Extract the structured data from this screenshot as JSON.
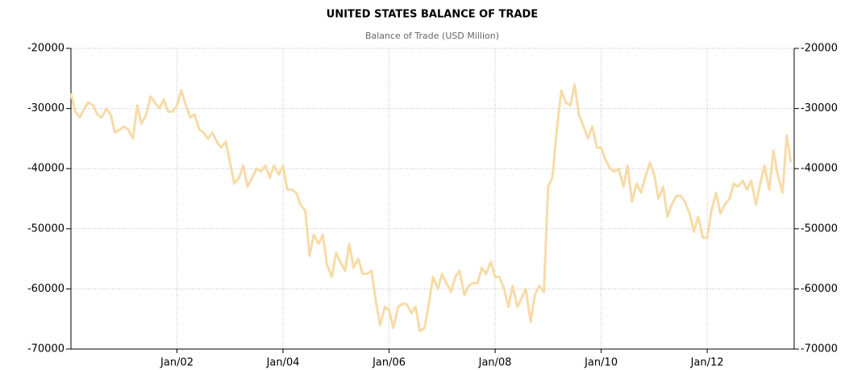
{
  "chart_data": {
    "type": "line",
    "title": "UNITED STATES BALANCE OF TRADE",
    "subtitle": "Balance of Trade (USD Million)",
    "x": [
      2000,
      2000.08,
      2000.17,
      2000.25,
      2000.33,
      2000.42,
      2000.5,
      2000.58,
      2000.67,
      2000.75,
      2000.83,
      2000.92,
      2001,
      2001.08,
      2001.17,
      2001.25,
      2001.33,
      2001.42,
      2001.5,
      2001.58,
      2001.67,
      2001.75,
      2001.83,
      2001.92,
      2002,
      2002.08,
      2002.17,
      2002.25,
      2002.33,
      2002.42,
      2002.5,
      2002.58,
      2002.67,
      2002.75,
      2002.83,
      2002.92,
      2003,
      2003.08,
      2003.17,
      2003.25,
      2003.33,
      2003.42,
      2003.5,
      2003.58,
      2003.67,
      2003.75,
      2003.83,
      2003.92,
      2004,
      2004.08,
      2004.17,
      2004.25,
      2004.33,
      2004.42,
      2004.5,
      2004.58,
      2004.67,
      2004.75,
      2004.83,
      2004.92,
      2005,
      2005.08,
      2005.17,
      2005.25,
      2005.33,
      2005.42,
      2005.5,
      2005.58,
      2005.67,
      2005.75,
      2005.83,
      2005.92,
      2006,
      2006.08,
      2006.17,
      2006.25,
      2006.33,
      2006.42,
      2006.5,
      2006.58,
      2006.67,
      2006.75,
      2006.83,
      2006.92,
      2007,
      2007.08,
      2007.17,
      2007.25,
      2007.33,
      2007.42,
      2007.5,
      2007.58,
      2007.67,
      2007.75,
      2007.83,
      2007.92,
      2008,
      2008.08,
      2008.17,
      2008.25,
      2008.33,
      2008.42,
      2008.5,
      2008.58,
      2008.67,
      2008.75,
      2008.83,
      2008.92,
      2009,
      2009.08,
      2009.17,
      2009.25,
      2009.33,
      2009.42,
      2009.5,
      2009.58,
      2009.67,
      2009.75,
      2009.83,
      2009.92,
      2010,
      2010.08,
      2010.17,
      2010.25,
      2010.33,
      2010.42,
      2010.5,
      2010.58,
      2010.67,
      2010.75,
      2010.83,
      2010.92,
      2011,
      2011.08,
      2011.17,
      2011.25,
      2011.33,
      2011.42,
      2011.5,
      2011.58,
      2011.67,
      2011.75,
      2011.83,
      2011.92,
      2012,
      2012.08,
      2012.17,
      2012.25,
      2012.33,
      2012.42,
      2012.5,
      2012.58,
      2012.67,
      2012.75,
      2012.83,
      2012.92,
      2013,
      2013.08,
      2013.17,
      2013.25,
      2013.33,
      2013.42,
      2013.5,
      2013.58
    ],
    "series": [
      {
        "color": "#f7dba7",
        "values": [
          -27500,
          -30500,
          -31500,
          -30000,
          -29000,
          -29500,
          -31000,
          -31500,
          -30000,
          -31000,
          -34000,
          -33500,
          -33000,
          -33500,
          -35000,
          -29500,
          -32500,
          -31000,
          -28000,
          -29000,
          -30000,
          -28500,
          -30500,
          -30500,
          -29500,
          -27000,
          -29500,
          -31500,
          -31000,
          -33500,
          -34000,
          -35000,
          -34000,
          -35500,
          -36500,
          -35500,
          -39000,
          -42500,
          -41500,
          -39500,
          -43000,
          -41500,
          -40000,
          -40500,
          -39500,
          -41500,
          -39500,
          -41000,
          -39500,
          -43500,
          -43500,
          -44000,
          -46000,
          -47000,
          -54500,
          -51000,
          -52500,
          -51000,
          -56000,
          -58000,
          -54000,
          -55500,
          -57000,
          -52500,
          -56500,
          -55000,
          -57500,
          -57500,
          -57000,
          -62000,
          -66000,
          -63000,
          -63500,
          -66500,
          -63000,
          -62500,
          -62500,
          -64000,
          -63000,
          -67000,
          -66500,
          -62500,
          -58000,
          -60000,
          -57500,
          -59000,
          -60500,
          -58000,
          -57000,
          -61000,
          -59500,
          -59000,
          -59000,
          -56500,
          -57500,
          -55500,
          -58000,
          -58000,
          -60000,
          -63000,
          -59500,
          -63000,
          -61500,
          -60000,
          -65500,
          -61000,
          -59500,
          -60500,
          -43000,
          -41500,
          -33000,
          -27000,
          -29000,
          -29500,
          -26000,
          -31000,
          -33000,
          -35000,
          -33000,
          -36500,
          -36500,
          -38500,
          -40000,
          -40500,
          -40000,
          -43000,
          -39500,
          -45500,
          -42500,
          -44000,
          -41500,
          -39000,
          -41000,
          -45000,
          -43000,
          -48000,
          -46000,
          -44500,
          -44500,
          -45500,
          -47500,
          -50500,
          -48000,
          -51500,
          -51500,
          -47000,
          -44000,
          -47500,
          -46000,
          -45000,
          -42500,
          -43000,
          -42000,
          -43500,
          -42000,
          -46000,
          -42500,
          -39500,
          -43500,
          -37000,
          -41000,
          -44000,
          -34500,
          -39000
        ]
      }
    ],
    "xlim": [
      2000,
      2013.64
    ],
    "xticks": [
      {
        "value": 2002,
        "label": "Jan/02"
      },
      {
        "value": 2004,
        "label": "Jan/04"
      },
      {
        "value": 2006,
        "label": "Jan/06"
      },
      {
        "value": 2008,
        "label": "Jan/08"
      },
      {
        "value": 2010,
        "label": "Jan/10"
      },
      {
        "value": 2012,
        "label": "Jan/12"
      }
    ],
    "ylim": [
      -70000,
      -20000
    ],
    "yticks": [
      -70000,
      -60000,
      -50000,
      -40000,
      -30000,
      -20000
    ],
    "grid": true
  }
}
